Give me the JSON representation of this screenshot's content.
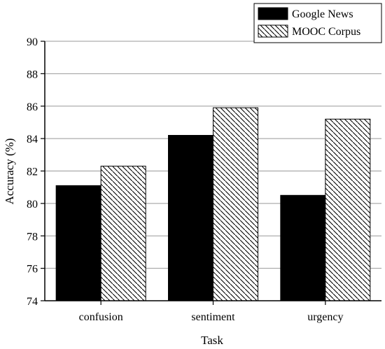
{
  "chart_data": {
    "type": "bar",
    "title": "",
    "xlabel": "Task",
    "ylabel": "Accuracy (%)",
    "categories": [
      "confusion",
      "sentiment",
      "urgency"
    ],
    "series": [
      {
        "name": "Google News",
        "values": [
          81.1,
          84.2,
          80.5
        ],
        "fill": "solid",
        "color": "#000000"
      },
      {
        "name": "MOOC Corpus",
        "values": [
          82.3,
          85.9,
          85.2
        ],
        "fill": "hatched",
        "color": "#000000"
      }
    ],
    "ylim": [
      74,
      90
    ],
    "yticks": [
      74,
      76,
      78,
      80,
      82,
      84,
      86,
      88,
      90
    ],
    "grid": "horizontal",
    "legend_position": "top-right"
  }
}
